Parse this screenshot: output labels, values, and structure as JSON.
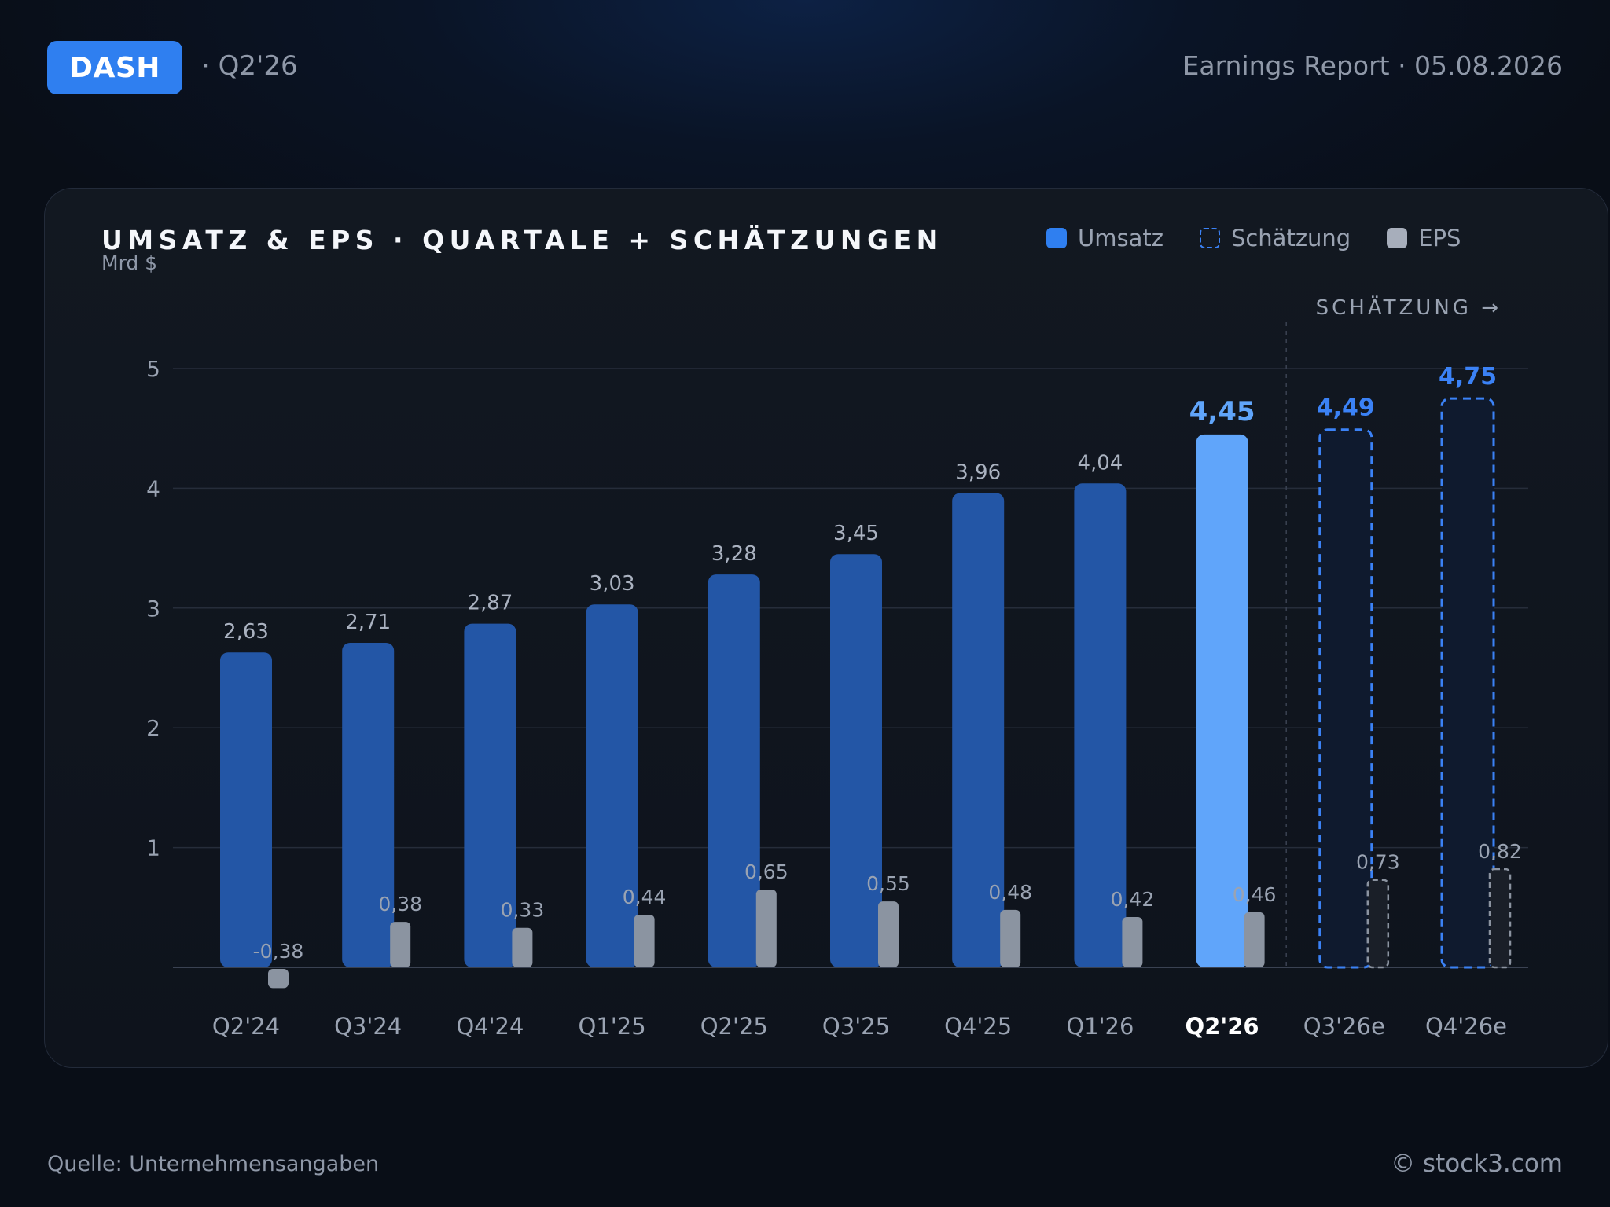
{
  "header": {
    "ticker": "DASH",
    "period": "· Q2'26",
    "report": "Earnings Report · 05.08.2026"
  },
  "legend": {
    "revenue": "Umsatz",
    "estimate": "Schätzung",
    "eps": "EPS"
  },
  "footer": {
    "source": "Quelle: Unternehmensangaben",
    "copyright": "© stock3.com"
  },
  "colors": {
    "revenue": "#2356a6",
    "current": "#60a5fa",
    "estimate_stroke": "#3b82f6",
    "estimate_fill": "#0f1a2e",
    "eps": "#8b94a1",
    "eps_estimate_stroke": "#8b93a0",
    "eps_estimate_fill": "#1a1f28"
  },
  "chart_data": {
    "type": "bar",
    "title": "UMSATZ & EPS · QUARTALE + SCHÄTZUNGEN",
    "subtitle": "Mrd $",
    "estimate_marker": "SCHÄTZUNG →",
    "categories": [
      "Q2'24",
      "Q3'24",
      "Q4'24",
      "Q1'25",
      "Q2'25",
      "Q3'25",
      "Q4'25",
      "Q1'26",
      "Q2'26",
      "Q3'26e",
      "Q4'26e"
    ],
    "highlight_index": 8,
    "estimate_start_index": 9,
    "ylim": [
      0,
      5
    ],
    "yticks": [
      1,
      2,
      3,
      4,
      5
    ],
    "grid": true,
    "legend_position": "top-right",
    "series": [
      {
        "name": "Umsatz",
        "values": [
          2.63,
          2.71,
          2.87,
          3.03,
          3.28,
          3.45,
          3.96,
          4.04,
          4.45,
          4.49,
          4.75
        ],
        "labels": [
          "2,63",
          "2,71",
          "2,87",
          "3,03",
          "3,28",
          "3,45",
          "3,96",
          "4,04",
          "4,45",
          "4,49",
          "4,75"
        ]
      },
      {
        "name": "EPS",
        "values": [
          -0.38,
          0.38,
          0.33,
          0.44,
          0.65,
          0.55,
          0.48,
          0.42,
          0.46,
          0.73,
          0.82
        ],
        "labels": [
          "-0,38",
          "0,38",
          "0,33",
          "0,44",
          "0,65",
          "0,55",
          "0,48",
          "0,42",
          "0,46",
          "0,73",
          "0,82"
        ]
      }
    ]
  }
}
